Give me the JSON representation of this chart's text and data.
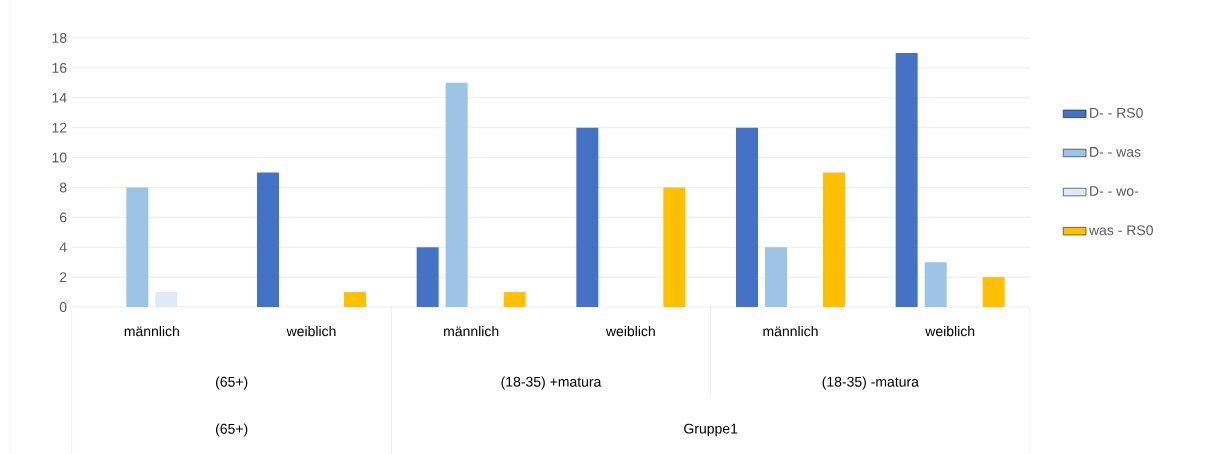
{
  "chart_data": {
    "type": "bar",
    "categories": [
      "männlich",
      "weiblich",
      "männlich",
      "weiblich",
      "männlich",
      "weiblich"
    ],
    "series": [
      {
        "name": "D- -  RS0",
        "color": "#4472c4",
        "values": [
          0,
          9,
          4,
          12,
          12,
          17
        ]
      },
      {
        "name": "D- -  was",
        "color": "#9dc3e6",
        "values": [
          8,
          0,
          15,
          0,
          4,
          3
        ]
      },
      {
        "name": "D- -  wo-",
        "color": "#deebf7",
        "values": [
          1,
          0,
          0,
          0,
          0,
          0
        ]
      },
      {
        "name": "was -  RS0",
        "color": "#ffc000",
        "values": [
          0,
          1,
          1,
          8,
          9,
          2
        ]
      }
    ],
    "annotations": [
      "(65+)",
      "(18-35) +matura",
      "(18-35) -matura",
      "(65+)",
      "Gruppe1"
    ],
    "ylim": [
      0,
      18
    ],
    "yticks": [
      0,
      2,
      4,
      6,
      8,
      10,
      12,
      14,
      16,
      18
    ],
    "grid": "y",
    "legend": "right"
  }
}
